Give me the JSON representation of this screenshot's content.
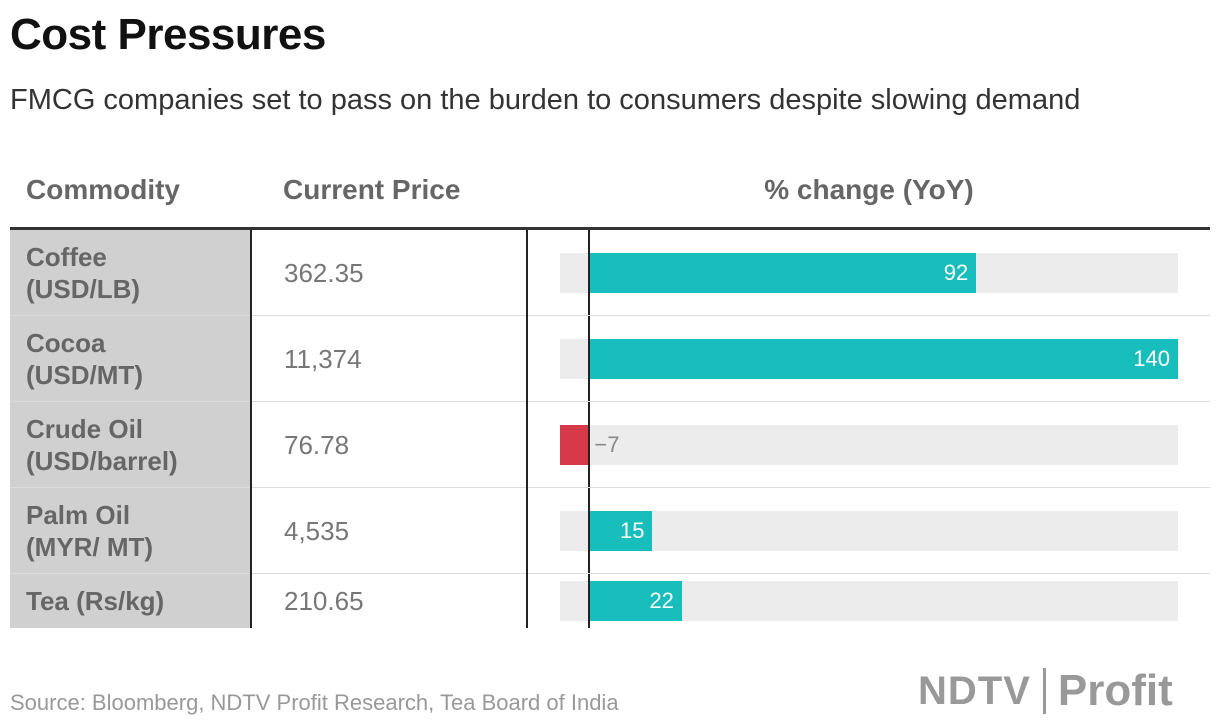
{
  "header": {
    "title": "Cost Pressures",
    "subtitle": "FMCG companies set to pass on the burden to consumers despite slowing demand"
  },
  "columns": {
    "commodity": "Commodity",
    "price": "Current Price",
    "change": "% change (YoY)"
  },
  "chart_data": {
    "type": "table",
    "title": "Cost Pressures",
    "subtitle": "FMCG companies set to pass on the burden to consumers despite slowing demand",
    "columns": [
      "Commodity",
      "Current Price",
      "% change (YoY)"
    ],
    "rows": [
      {
        "name_line1": "Coffee",
        "name_line2": "(USD/LB)",
        "price": "362.35",
        "change": 92,
        "change_label": "92"
      },
      {
        "name_line1": "Cocoa",
        "name_line2": "(USD/MT)",
        "price": "11,374",
        "change": 140,
        "change_label": "140"
      },
      {
        "name_line1": "Crude Oil",
        "name_line2": "(USD/barrel)",
        "price": "76.78",
        "change": -7,
        "change_label": "−7"
      },
      {
        "name_line1": "Palm Oil",
        "name_line2": "(MYR/ MT)",
        "price": "4,535",
        "change": 15,
        "change_label": "15"
      },
      {
        "name_line1": "Tea (Rs/kg)",
        "name_line2": "",
        "price": "210.65",
        "change": 22,
        "change_label": "22"
      }
    ],
    "xlim": [
      -7,
      140
    ],
    "positive_color": "#17bebb",
    "negative_color": "#d63a4a"
  },
  "footer": {
    "source": "Source: Bloomberg, NDTV Profit Research, Tea Board of India",
    "logo_left": "NDTV",
    "logo_right": "Profit"
  }
}
